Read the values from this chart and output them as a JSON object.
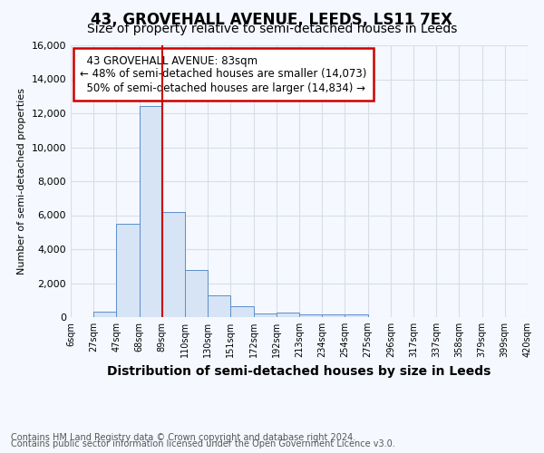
{
  "title1": "43, GROVEHALL AVENUE, LEEDS, LS11 7EX",
  "title2": "Size of property relative to semi-detached houses in Leeds",
  "xlabel": "Distribution of semi-detached houses by size in Leeds",
  "ylabel": "Number of semi-detached properties",
  "footnote1": "Contains HM Land Registry data © Crown copyright and database right 2024.",
  "footnote2": "Contains public sector information licensed under the Open Government Licence v3.0.",
  "bin_labels": [
    "6sqm",
    "27sqm",
    "47sqm",
    "68sqm",
    "89sqm",
    "110sqm",
    "130sqm",
    "151sqm",
    "172sqm",
    "192sqm",
    "213sqm",
    "234sqm",
    "254sqm",
    "275sqm",
    "296sqm",
    "317sqm",
    "337sqm",
    "358sqm",
    "379sqm",
    "399sqm",
    "420sqm"
  ],
  "bar_heights": [
    0,
    300,
    5500,
    12450,
    6200,
    2800,
    1300,
    620,
    200,
    250,
    150,
    150,
    150,
    0,
    0,
    0,
    0,
    0,
    0,
    0
  ],
  "bar_color": "#d6e4f5",
  "bar_edge_color": "#5b8fc9",
  "vline_position": 4,
  "vline_color": "#cc0000",
  "annotation_box_edge_color": "#cc0000",
  "property_label": "43 GROVEHALL AVENUE: 83sqm",
  "pct_smaller": 48,
  "pct_smaller_count": "14,073",
  "pct_larger": 50,
  "pct_larger_count": "14,834",
  "ylim": [
    0,
    16000
  ],
  "yticks": [
    0,
    2000,
    4000,
    6000,
    8000,
    10000,
    12000,
    14000,
    16000
  ],
  "background_color": "#f5f8ff",
  "grid_color": "#d8dde8",
  "title1_fontsize": 12,
  "title2_fontsize": 10,
  "footnote_fontsize": 7,
  "ylabel_fontsize": 8,
  "xlabel_fontsize": 10
}
